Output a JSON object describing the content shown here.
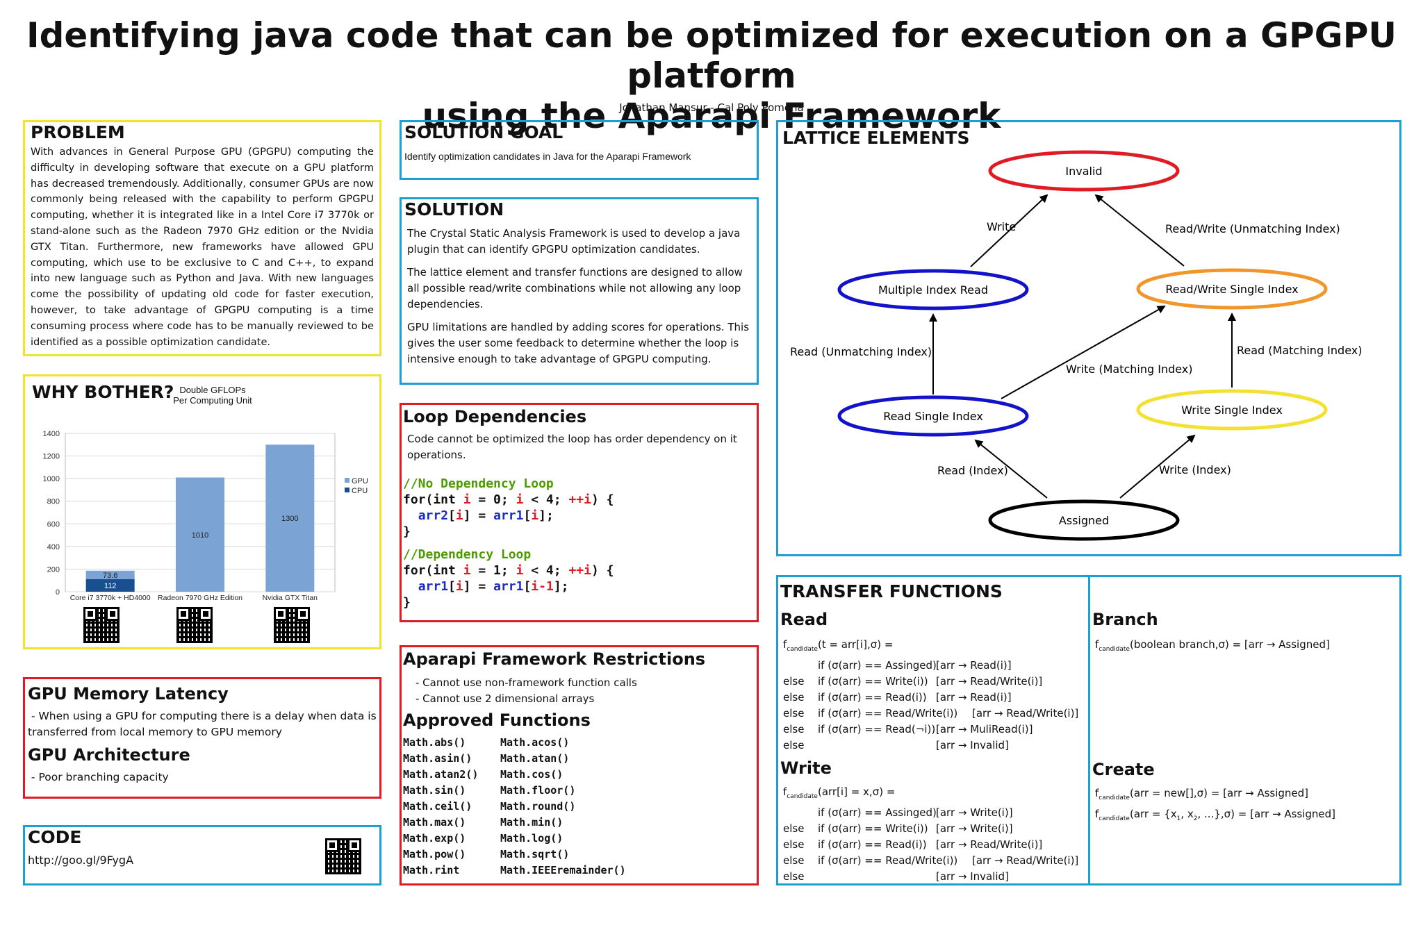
{
  "header": {
    "title_line1": "Identifying java code that can be optimized for execution on a GPGPU platform",
    "title_line2": "using the Aparapi Framework",
    "author": "Jonathan Mansur - Cal Poly Pomona"
  },
  "problem": {
    "heading": "PROBLEM",
    "body": "With advances in General Purpose GPU (GPGPU) computing the difficulty in developing software that execute on a GPU platform has decreased tremendously. Additionally, consumer GPUs are now commonly being released with the capability to perform GPGPU computing, whether it is integrated like in a Intel Core i7 3770k or stand-alone such as the Radeon 7970 GHz edition or the Nvidia GTX Titan. Furthermore, new frameworks have allowed GPU computing, which use to be exclusive to C and C++, to expand into new language such as Python and Java. With new languages come the possibility of updating old code for faster execution, however, to take advantage of GPGPU computing is a time consuming process where code has to be manually reviewed to be identified as a possible optimization candidate."
  },
  "why": {
    "heading": "WHY BOTHER?",
    "chart_title_1": "Double GFLOPs",
    "chart_title_2": "Per Computing Unit"
  },
  "chart_data": {
    "type": "bar",
    "title": "Double GFLOPs Per Computing Unit",
    "categories": [
      "Core i7 3770k + HD4000",
      "Radeon 7970 GHz  Edition",
      "Nvidia GTX Titan"
    ],
    "series": [
      {
        "name": "CPU",
        "values": [
          112,
          null,
          null
        ],
        "color": "#1a4f8f"
      },
      {
        "name": "GPU",
        "values": [
          73.6,
          1010,
          1300
        ],
        "color": "#7ba3d4"
      }
    ],
    "stacked": true,
    "data_labels": [
      [
        "112",
        "73.6"
      ],
      [
        "1010"
      ],
      [
        "1300"
      ]
    ],
    "ylim": [
      0,
      1400
    ],
    "yticks": [
      "0",
      "200",
      "400",
      "600",
      "800",
      "1000",
      "1200",
      "1400"
    ],
    "legend": [
      "GPU",
      "CPU"
    ],
    "legend_position": "right"
  },
  "gpu_memory": {
    "heading": "GPU Memory Latency",
    "body": " - When using a GPU for computing there is a delay when data is transferred from local memory to GPU memory"
  },
  "gpu_arch": {
    "heading": "GPU Architecture",
    "body": " - Poor branching capacity"
  },
  "code": {
    "heading": "CODE",
    "url": "http://goo.gl/9FygA"
  },
  "solution_goal": {
    "heading": "SOLUTION GOAL",
    "body": "Identify optimization candidates in Java for the Aparapi Framework"
  },
  "solution": {
    "heading": "SOLUTION",
    "p1": "The Crystal Static Analysis Framework is used to develop a java plugin that can identify GPGPU optimization candidates.",
    "p2": "The lattice element and transfer functions are designed to allow all possible read/write combinations while not allowing any loop dependencies.",
    "p3": "GPU limitations are handled by adding scores for operations. This gives the user some feedback to determine whether the loop is intensive enough to take advantage of GPGPU computing."
  },
  "loop": {
    "heading": "Loop Dependencies",
    "body": "Code cannot be optimized the loop has order dependency on it operations.",
    "c1": "//No Dependency Loop",
    "c2": "//Dependency Loop"
  },
  "restrictions": {
    "heading": "Aparapi Framework Restrictions",
    "items": [
      "- Cannot use non-framework function calls",
      "- Cannot use 2 dimensional arrays"
    ],
    "approved_heading": "Approved Functions",
    "functions": [
      "Math.abs()",
      "Math.acos()",
      "Math.asin()",
      "Math.atan()",
      "Math.atan2()",
      "Math.cos()",
      "Math.sin()",
      "Math.floor()",
      "Math.ceil()",
      "Math.round()",
      "Math.max()",
      "Math.min()",
      "Math.exp()",
      "Math.log()",
      "Math.pow()",
      "Math.sqrt()",
      "Math.rint",
      "Math.IEEEremainder()"
    ]
  },
  "lattice": {
    "heading": "LATTICE ELEMENTS",
    "nodes": {
      "invalid": "Invalid",
      "multi_read": "Multiple Index Read",
      "rw_single": "Read/Write Single Index",
      "read_single": "Read Single Index",
      "write_single": "Write Single Index",
      "assigned": "Assigned"
    },
    "edges": {
      "write": "Write",
      "rw_unmatching": "Read/Write (Unmatching Index)",
      "read_unmatching": "Read (Unmatching Index)",
      "write_matching": "Write (Matching Index)",
      "read_matching": "Read (Matching Index)",
      "read_index": "Read (Index)",
      "write_index": "Write (Index)"
    },
    "colors": {
      "invalid": "#e01b24",
      "multi": "#1212c8",
      "rw": "#f0962a",
      "read": "#1212c8",
      "write": "#f3e131",
      "assigned": "#000000"
    }
  },
  "transfer": {
    "heading": "TRANSFER FUNCTIONS",
    "read_heading": "Read",
    "write_heading": "Write",
    "branch_heading": "Branch",
    "create_heading": "Create",
    "f": "f",
    "candidate": "candidate",
    "read_sig": "(t = arr[i],σ) =",
    "read_rows": [
      [
        "",
        "if (σ(arr) == Assinged)",
        "[arr → Read(i)]"
      ],
      [
        "else",
        "if (σ(arr) == Write(i))",
        "[arr → Read/Write(i)]"
      ],
      [
        "else",
        "if (σ(arr) == Read(i))",
        "[arr → Read(i)]"
      ],
      [
        "else",
        "if (σ(arr) == Read/Write(i))",
        "[arr → Read/Write(i)]"
      ],
      [
        "else",
        "if (σ(arr) == Read(¬i))",
        "[arr → MuliRead(i)]"
      ],
      [
        "else",
        "",
        "[arr → Invalid]"
      ]
    ],
    "write_sig": "(arr[i] = x,σ) =",
    "write_rows": [
      [
        "",
        "if (σ(arr) == Assinged)",
        "[arr → Write(i)]"
      ],
      [
        "else",
        "if (σ(arr) == Write(i))",
        "[arr → Write(i)]"
      ],
      [
        "else",
        "if (σ(arr) == Read(i))",
        "[arr → Read/Write(i)]"
      ],
      [
        "else",
        "if (σ(arr) == Read/Write(i))",
        "[arr → Read/Write(i)]"
      ],
      [
        "else",
        "",
        "[arr → Invalid]"
      ]
    ],
    "branch_sig": "(boolean branch,σ) = [arr → Assigned]",
    "create_sig1": "(arr = new[],σ) = [arr → Assigned]",
    "create_sig2_a": "(arr = {x",
    "create_sig2_b": "1",
    "create_sig2_c": ", x",
    "create_sig2_d": "2",
    "create_sig2_e": ", ...},σ) = [arr → Assigned]"
  }
}
